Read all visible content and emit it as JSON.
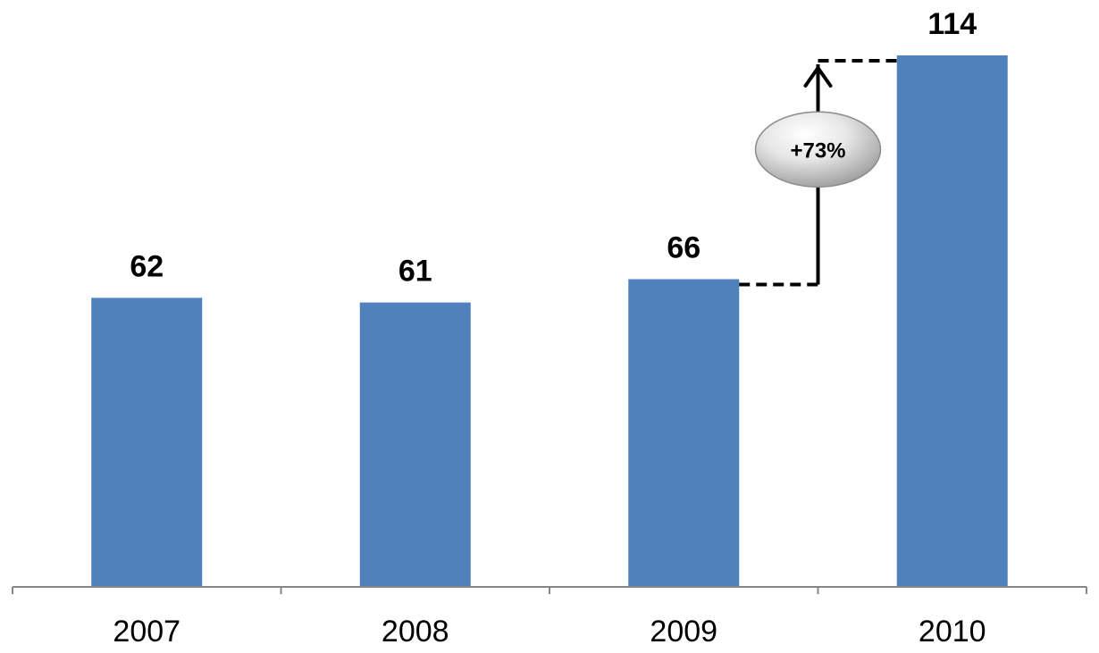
{
  "chart_data": {
    "type": "bar",
    "categories": [
      "2007",
      "2008",
      "2009",
      "2010"
    ],
    "values": [
      62,
      61,
      66,
      114
    ],
    "data_labels": [
      "62",
      "61",
      "66",
      "114"
    ],
    "title": "",
    "xlabel": "",
    "ylabel": "",
    "ylim": [
      0,
      120
    ],
    "grid": false,
    "legend": "none",
    "colors": {
      "bar": "#4F81BD",
      "axis": "#868686",
      "annotation": "#000000"
    },
    "annotation": {
      "label": "+73%",
      "from_category": "2009",
      "to_category": "2010",
      "shape": "silver-ellipse",
      "arrow": "arrow-up-icon"
    }
  }
}
